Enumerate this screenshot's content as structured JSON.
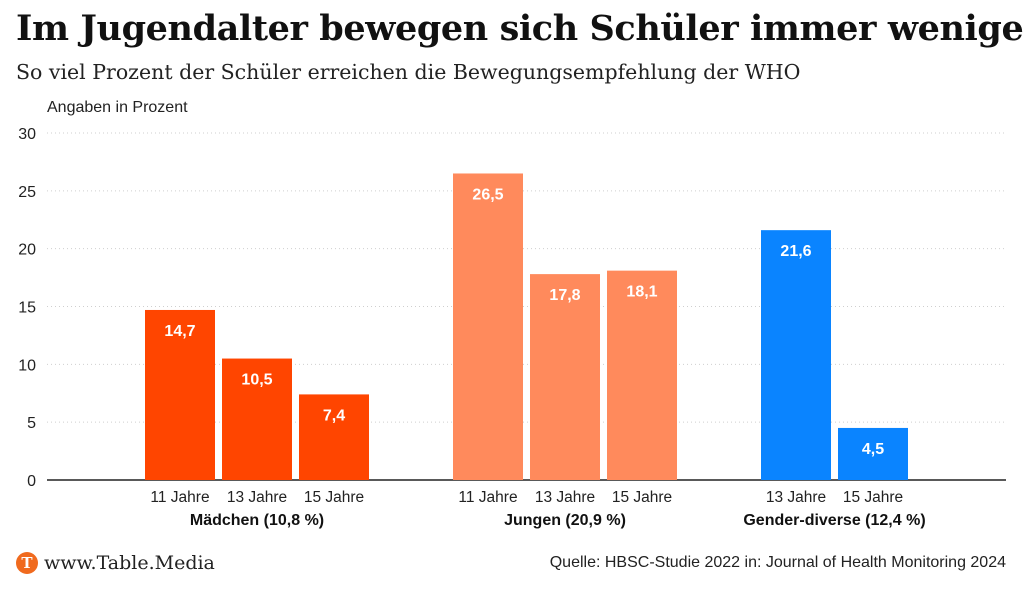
{
  "title": "Im Jugendalter bewegen sich Schüler immer weniger",
  "subtitle": "So viel Prozent der Schüler erreichen die Bewegungsempfehlung der WHO",
  "unit_label": "Angaben in Prozent",
  "footer": {
    "logo_letter": "T",
    "brand": "www.Table.Media",
    "source": "Quelle: HBSC-Studie 2022 in: Journal of Health Monitoring 2024"
  },
  "chart_data": {
    "type": "bar",
    "ylim": [
      0,
      30
    ],
    "yticks": [
      0,
      5,
      10,
      15,
      20,
      25,
      30
    ],
    "grid": true,
    "groups": [
      {
        "label": "Mädchen (10,8 %)",
        "color": "#ff4500",
        "bars": [
          {
            "label": "11 Jahre",
            "value": 14.7,
            "value_label": "14,7"
          },
          {
            "label": "13 Jahre",
            "value": 10.5,
            "value_label": "10,5"
          },
          {
            "label": "15 Jahre",
            "value": 7.4,
            "value_label": "7,4"
          }
        ]
      },
      {
        "label": "Jungen (20,9 %)",
        "color": "#ff8a5c",
        "bars": [
          {
            "label": "11 Jahre",
            "value": 26.5,
            "value_label": "26,5"
          },
          {
            "label": "13 Jahre",
            "value": 17.8,
            "value_label": "17,8"
          },
          {
            "label": "15 Jahre",
            "value": 18.1,
            "value_label": "18,1"
          }
        ]
      },
      {
        "label": "Gender-diverse (12,4 %)",
        "color": "#0a84ff",
        "bars": [
          {
            "label": "13 Jahre",
            "value": 21.6,
            "value_label": "21,6"
          },
          {
            "label": "15 Jahre",
            "value": 4.5,
            "value_label": "4,5"
          }
        ]
      }
    ]
  }
}
